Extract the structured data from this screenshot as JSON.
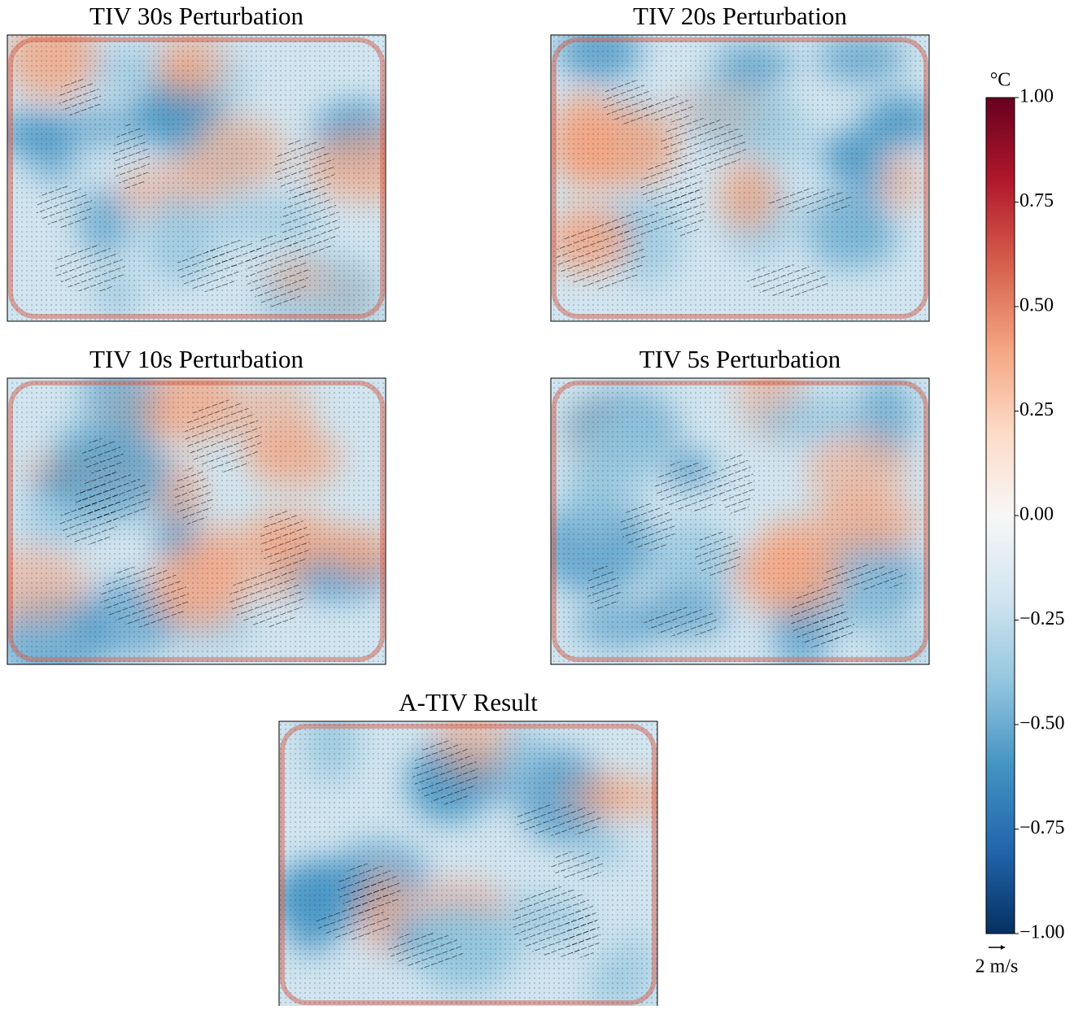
{
  "chart_data": {
    "type": "heatmap",
    "panels": [
      {
        "title": "TIV 30s Perturbation"
      },
      {
        "title": "TIV 20s Perturbation"
      },
      {
        "title": "TIV 10s Perturbation"
      },
      {
        "title": "TIV 5s Perturbation"
      },
      {
        "title": "A-TIV Result"
      }
    ],
    "colorbar": {
      "label": "°C",
      "lim": [
        -1,
        1
      ],
      "ticks": [
        {
          "value": 1,
          "label": "1.00"
        },
        {
          "value": 0.75,
          "label": "0.75"
        },
        {
          "value": 0.5,
          "label": "0.50"
        },
        {
          "value": 0.25,
          "label": "0.25"
        },
        {
          "value": 0,
          "label": "0.00"
        },
        {
          "value": -0.25,
          "label": "−0.25"
        },
        {
          "value": -0.5,
          "label": "−0.50"
        },
        {
          "value": -0.75,
          "label": "−0.75"
        },
        {
          "value": -1,
          "label": "−1.00"
        }
      ],
      "colors": [
        "#053061",
        "#2166ac",
        "#4393c3",
        "#92c5de",
        "#d1e5f0",
        "#f7f7f7",
        "#fddbc7",
        "#f4a582",
        "#d6604d",
        "#b2182b",
        "#67001f"
      ]
    },
    "quiver_key": {
      "value": 2,
      "label": "2 m/s"
    }
  }
}
